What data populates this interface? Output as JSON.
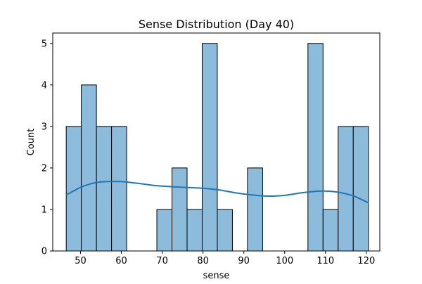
{
  "chart_data": {
    "type": "bar",
    "title": "Sense Distribution (Day 40)",
    "xlabel": "sense",
    "ylabel": "Count",
    "xlim": [
      43.2,
      123.3
    ],
    "ylim": [
      0,
      5.25
    ],
    "xticks": [
      50,
      60,
      70,
      80,
      90,
      100,
      110,
      120
    ],
    "yticks": [
      0,
      1,
      2,
      3,
      4,
      5
    ],
    "grid": false,
    "legend": "none",
    "bin_edges": [
      46.5,
      50.2,
      53.9,
      57.6,
      61.3,
      65.0,
      68.7,
      72.4,
      76.1,
      79.8,
      83.5,
      87.2,
      90.9,
      94.6,
      98.3,
      102.0,
      105.7,
      109.4,
      113.1,
      116.8,
      120.5
    ],
    "counts": [
      3,
      4,
      3,
      3,
      0,
      0,
      1,
      2,
      1,
      5,
      1,
      0,
      2,
      0,
      0,
      0,
      5,
      1,
      3,
      3
    ],
    "kde_x": [
      46.5,
      50,
      53,
      56,
      60,
      64,
      68,
      72,
      76,
      80,
      84,
      88,
      92,
      96,
      100,
      104,
      108,
      111,
      114,
      117,
      120.5
    ],
    "kde_y": [
      1.35,
      1.53,
      1.63,
      1.67,
      1.67,
      1.63,
      1.58,
      1.55,
      1.53,
      1.51,
      1.47,
      1.4,
      1.35,
      1.32,
      1.34,
      1.4,
      1.44,
      1.44,
      1.4,
      1.32,
      1.16
    ],
    "colors": {
      "bar_fill": "#8dbbdb",
      "bar_edge": "#000000",
      "kde_line": "#1f77b4",
      "axis": "#000000",
      "background": "#ffffff"
    }
  }
}
